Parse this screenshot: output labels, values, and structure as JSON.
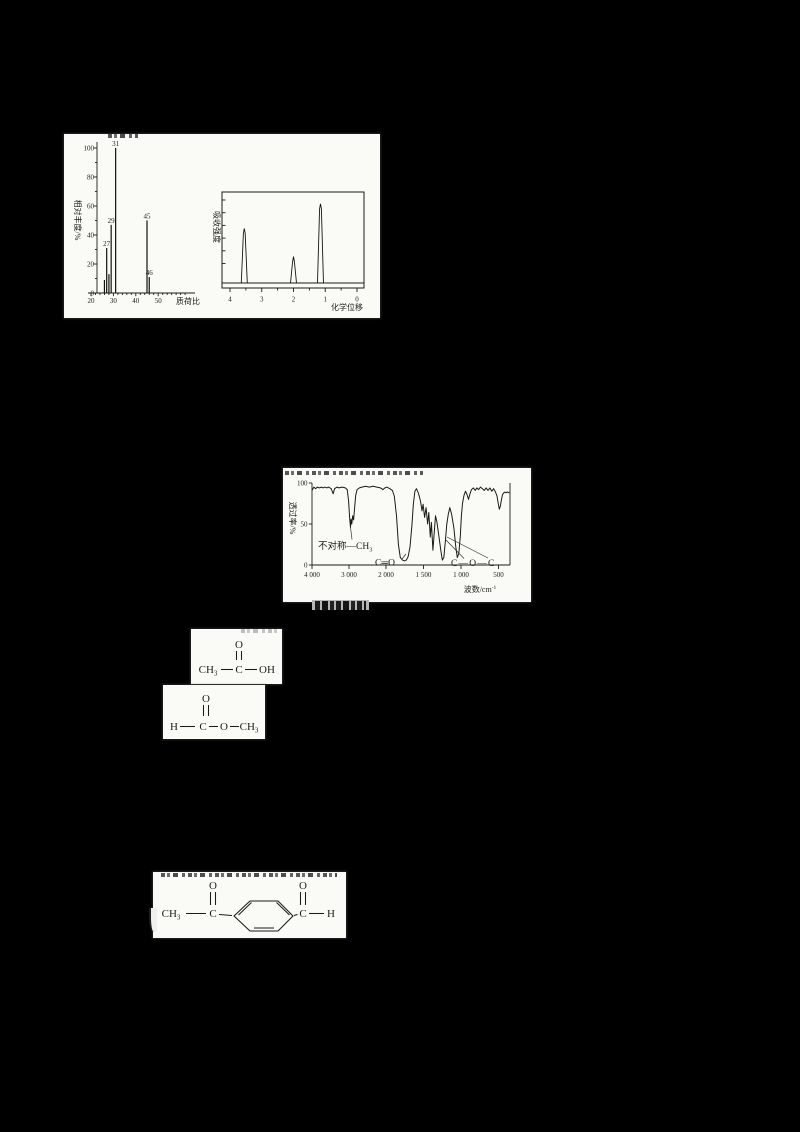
{
  "page": {
    "background": "#000000",
    "paper_color": "#fafaf7",
    "ink_color": "#1b1b1b"
  },
  "chart_data": [
    {
      "type": "bar",
      "title": "",
      "xlabel": "质荷比",
      "ylabel": "相对丰度/%",
      "xticks": [
        20,
        30,
        40,
        50
      ],
      "yticks": [
        0,
        20,
        40,
        60,
        80,
        100
      ],
      "xlim": [
        20,
        62
      ],
      "ylim": [
        0,
        100
      ],
      "grid": false,
      "peaks": [
        {
          "mz": 26,
          "rel": 9
        },
        {
          "mz": 27,
          "rel": 31,
          "label": "27"
        },
        {
          "mz": 28,
          "rel": 13
        },
        {
          "mz": 29,
          "rel": 47,
          "label": "29"
        },
        {
          "mz": 31,
          "rel": 100,
          "label": "31"
        },
        {
          "mz": 45,
          "rel": 50,
          "label": "45"
        },
        {
          "mz": 46,
          "rel": 11,
          "label": "46"
        }
      ]
    },
    {
      "type": "line",
      "title": "",
      "xlabel": "化学位移",
      "ylabel": "吸收强度",
      "xticks": [
        4,
        3,
        2,
        1,
        0
      ],
      "x_axis_reversed": true,
      "xlim": [
        4.3,
        0
      ],
      "peaks": [
        {
          "shift": 3.55,
          "rel_height": 60
        },
        {
          "shift": 2.0,
          "rel_height": 29
        },
        {
          "shift": 1.15,
          "rel_height": 87
        }
      ]
    },
    {
      "type": "line",
      "title": "",
      "xlabel": "波数/cm⁻¹",
      "xlabel_main": "波数/cm",
      "xlabel_sup": "-1",
      "ylabel": "透过率/%",
      "yticks": [
        0,
        50,
        100
      ],
      "xtick_labels": [
        "4 000",
        "3 000",
        "2 000",
        "1 500",
        "1 000",
        "500"
      ],
      "xtick_values": [
        4000,
        3000,
        2000,
        1500,
        1000,
        500
      ],
      "annotations": {
        "asym_main": "不对称—CH",
        "asym_sub": "3",
        "carbonyl": "C═O",
        "ester": "C—O—C"
      },
      "curve_points": [
        [
          4000,
          91
        ],
        [
          3950,
          95
        ],
        [
          3900,
          93
        ],
        [
          3860,
          95
        ],
        [
          3800,
          94
        ],
        [
          3740,
          95
        ],
        [
          3700,
          94
        ],
        [
          3650,
          95
        ],
        [
          3600,
          94
        ],
        [
          3550,
          95
        ],
        [
          3480,
          93
        ],
        [
          3430,
          87
        ],
        [
          3390,
          93
        ],
        [
          3330,
          95
        ],
        [
          3270,
          94
        ],
        [
          3180,
          95
        ],
        [
          3100,
          94
        ],
        [
          3050,
          92
        ],
        [
          3010,
          78
        ],
        [
          2985,
          58
        ],
        [
          2960,
          46
        ],
        [
          2945,
          56
        ],
        [
          2925,
          50
        ],
        [
          2900,
          60
        ],
        [
          2875,
          55
        ],
        [
          2850,
          68
        ],
        [
          2820,
          85
        ],
        [
          2780,
          92
        ],
        [
          2720,
          94
        ],
        [
          2650,
          95
        ],
        [
          2550,
          96
        ],
        [
          2450,
          95
        ],
        [
          2350,
          96
        ],
        [
          2250,
          95
        ],
        [
          2150,
          94
        ],
        [
          2080,
          92
        ],
        [
          2030,
          94
        ],
        [
          1990,
          95
        ],
        [
          1950,
          93
        ],
        [
          1915,
          91
        ],
        [
          1890,
          84
        ],
        [
          1860,
          60
        ],
        [
          1835,
          25
        ],
        [
          1810,
          9
        ],
        [
          1780,
          6
        ],
        [
          1755,
          5
        ],
        [
          1730,
          6
        ],
        [
          1705,
          10
        ],
        [
          1680,
          22
        ],
        [
          1655,
          48
        ],
        [
          1635,
          75
        ],
        [
          1615,
          90
        ],
        [
          1595,
          93
        ],
        [
          1570,
          88
        ],
        [
          1540,
          78
        ],
        [
          1520,
          66
        ],
        [
          1505,
          74
        ],
        [
          1485,
          58
        ],
        [
          1465,
          70
        ],
        [
          1445,
          50
        ],
        [
          1430,
          64
        ],
        [
          1410,
          34
        ],
        [
          1395,
          52
        ],
        [
          1375,
          18
        ],
        [
          1355,
          42
        ],
        [
          1340,
          60
        ],
        [
          1320,
          52
        ],
        [
          1295,
          35
        ],
        [
          1270,
          18
        ],
        [
          1250,
          6
        ],
        [
          1230,
          9
        ],
        [
          1210,
          28
        ],
        [
          1190,
          50
        ],
        [
          1170,
          62
        ],
        [
          1150,
          70
        ],
        [
          1125,
          62
        ],
        [
          1095,
          45
        ],
        [
          1070,
          22
        ],
        [
          1050,
          9
        ],
        [
          1030,
          14
        ],
        [
          1010,
          35
        ],
        [
          995,
          60
        ],
        [
          980,
          75
        ],
        [
          960,
          85
        ],
        [
          940,
          90
        ],
        [
          920,
          86
        ],
        [
          900,
          80
        ],
        [
          880,
          87
        ],
        [
          860,
          92
        ],
        [
          835,
          94
        ],
        [
          810,
          91
        ],
        [
          790,
          94
        ],
        [
          765,
          92
        ],
        [
          740,
          95
        ],
        [
          715,
          93
        ],
        [
          690,
          91
        ],
        [
          665,
          94
        ],
        [
          640,
          91
        ],
        [
          615,
          94
        ],
        [
          590,
          90
        ],
        [
          565,
          93
        ],
        [
          540,
          89
        ],
        [
          520,
          84
        ],
        [
          505,
          76
        ],
        [
          490,
          68
        ],
        [
          475,
          72
        ],
        [
          460,
          80
        ],
        [
          445,
          86
        ],
        [
          430,
          88
        ],
        [
          415,
          89
        ],
        [
          400,
          88
        ],
        [
          380,
          89
        ],
        [
          360,
          88
        ]
      ]
    }
  ],
  "structures": {
    "acetic_acid": {
      "o": "O",
      "ch_main": "CH",
      "ch_sub": "3",
      "c": "C",
      "oh": "OH"
    },
    "methyl_formate": {
      "o_top": "O",
      "h": "H",
      "c": "C",
      "o": "O",
      "ch_main": "CH",
      "ch_sub": "3"
    },
    "acyl_benzaldehyde": {
      "ch_main": "CH",
      "ch_sub": "3",
      "c_left": "C",
      "o_left": "O",
      "c_right": "C",
      "o_right": "O",
      "h": "H"
    }
  }
}
